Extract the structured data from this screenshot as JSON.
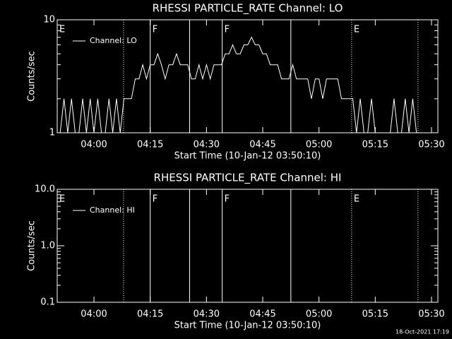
{
  "chart_data": [
    {
      "type": "line",
      "title": "RHESSI PARTICLE_RATE Channel: LO",
      "xlabel": "Start Time (10-Jan-12 03:50:10)",
      "ylabel": "Counts/sec",
      "log_y": true,
      "xlim": [
        230.2,
        331.7
      ],
      "ylim": [
        1,
        10
      ],
      "xticks": [
        {
          "value": 240,
          "label": "04:00"
        },
        {
          "value": 255,
          "label": "04:15"
        },
        {
          "value": 270,
          "label": "04:30"
        },
        {
          "value": 285,
          "label": "04:45"
        },
        {
          "value": 300,
          "label": "05:00"
        },
        {
          "value": 315,
          "label": "05:15"
        },
        {
          "value": 330,
          "label": "05:30"
        }
      ],
      "yticks": [
        1,
        10
      ],
      "events": [
        {
          "x": 247.9,
          "style": "dotted"
        },
        {
          "x": 255,
          "style": "solid"
        },
        {
          "x": 265.5,
          "style": "solid"
        },
        {
          "x": 274.2,
          "style": "solid"
        },
        {
          "x": 292.5,
          "style": "solid"
        },
        {
          "x": 308.7,
          "style": "dotted"
        },
        {
          "x": 326.4,
          "style": "dotted"
        }
      ],
      "annotations": [
        {
          "text": "E",
          "x": 230.2
        },
        {
          "text": "F",
          "x": 255
        },
        {
          "text": "F",
          "x": 274.2
        },
        {
          "text": "E",
          "x": 308.7
        }
      ],
      "x": [
        231,
        232,
        233,
        234,
        235,
        236,
        237,
        238,
        239,
        240,
        241,
        242,
        243,
        244,
        245,
        246,
        247,
        248,
        249,
        250,
        251,
        252,
        253,
        254,
        255,
        256,
        257,
        258,
        259,
        260,
        261,
        262,
        263,
        264,
        265,
        266,
        267,
        268,
        269,
        270,
        271,
        272,
        273,
        274,
        275,
        276,
        277,
        278,
        279,
        280,
        281,
        282,
        283,
        284,
        285,
        286,
        287,
        288,
        289,
        290,
        291,
        292,
        293,
        294,
        295,
        296,
        297,
        298,
        299,
        300,
        301,
        302,
        303,
        304,
        305,
        306,
        307,
        308,
        309,
        310,
        311,
        312,
        313,
        314,
        315,
        316,
        317,
        318,
        319,
        320,
        321,
        322,
        323,
        324,
        325,
        326
      ],
      "series": [
        {
          "name": "Channel: LO",
          "color": "#ffffff",
          "values": [
            1,
            2,
            1,
            2,
            1,
            1,
            2,
            1,
            2,
            1,
            2,
            1,
            1,
            2,
            1,
            2,
            1,
            2,
            2,
            2,
            3,
            3,
            4,
            3,
            4,
            4,
            5,
            4,
            3,
            4,
            4,
            5,
            4,
            4,
            4,
            3,
            3,
            4,
            3,
            4,
            3,
            4,
            4,
            4,
            5,
            5,
            6,
            5,
            5,
            6,
            6,
            7,
            6,
            6,
            5,
            5,
            4,
            4,
            4,
            3,
            3,
            3,
            4,
            3,
            3,
            3,
            3,
            2,
            3,
            3,
            2,
            3,
            3,
            3,
            3,
            2,
            2,
            2,
            2,
            1,
            2,
            1,
            1,
            2,
            1,
            1,
            1,
            1,
            1,
            2,
            1,
            1,
            2,
            1,
            2,
            1
          ]
        }
      ]
    },
    {
      "type": "line",
      "title": "RHESSI PARTICLE_RATE Channel: HI",
      "xlabel": "Start Time (10-Jan-12 03:50:10)",
      "ylabel": "Counts/sec",
      "log_y": true,
      "xlim": [
        230.2,
        331.7
      ],
      "ylim": [
        0.1,
        10
      ],
      "xticks": [
        {
          "value": 240,
          "label": "04:00"
        },
        {
          "value": 255,
          "label": "04:15"
        },
        {
          "value": 270,
          "label": "04:30"
        },
        {
          "value": 285,
          "label": "04:45"
        },
        {
          "value": 300,
          "label": "05:00"
        },
        {
          "value": 315,
          "label": "05:15"
        },
        {
          "value": 330,
          "label": "05:30"
        }
      ],
      "yticks": [
        0.1,
        {
          "value": 1,
          "label": "1.0"
        },
        {
          "value": 10,
          "label": "10.0"
        }
      ],
      "events": [
        {
          "x": 247.9,
          "style": "dotted"
        },
        {
          "x": 255,
          "style": "solid"
        },
        {
          "x": 265.5,
          "style": "solid"
        },
        {
          "x": 274.2,
          "style": "solid"
        },
        {
          "x": 292.5,
          "style": "solid"
        },
        {
          "x": 308.7,
          "style": "dotted"
        },
        {
          "x": 326.4,
          "style": "dotted"
        }
      ],
      "annotations": [
        {
          "text": "E",
          "x": 230.2
        },
        {
          "text": "F",
          "x": 255
        },
        {
          "text": "F",
          "x": 274.2
        },
        {
          "text": "E",
          "x": 308.7
        }
      ],
      "x": [],
      "series": [
        {
          "name": "Channel: HI",
          "color": "#ffffff",
          "values": []
        }
      ]
    }
  ],
  "footer": "18-Oct-2021 17:19"
}
